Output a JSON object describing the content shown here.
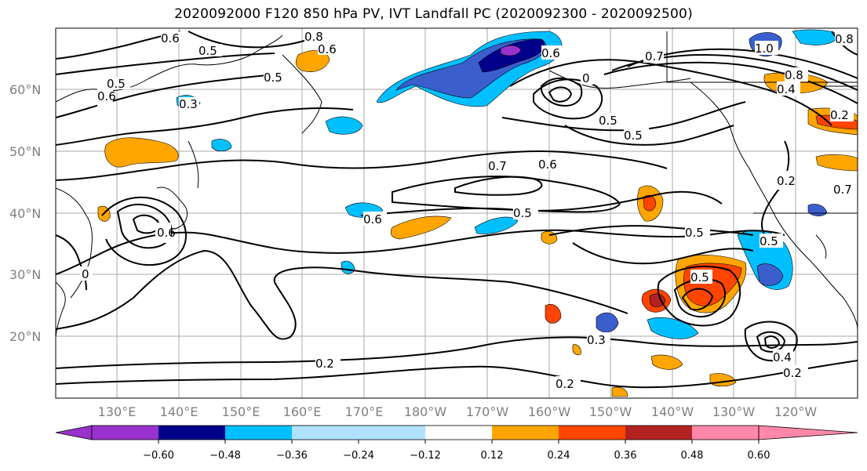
{
  "title": "2020092000 F120 850 hPa PV, IVT Landfall PC (2020092300 - 2020092500)",
  "map": {
    "lat_labels": [
      "60°N",
      "50°N",
      "40°N",
      "30°N",
      "20°N"
    ],
    "lon_labels": [
      "130°E",
      "140°E",
      "150°E",
      "160°E",
      "170°E",
      "180°W",
      "170°W",
      "160°W",
      "150°W",
      "140°W",
      "130°W",
      "120°W"
    ],
    "contour_labels": [
      "0.6",
      "0.5",
      "0.8",
      "0.6",
      "0.5",
      "0.6",
      "0.5",
      "0.3",
      "0.7",
      "0.6",
      "0.5",
      "0.7",
      "0.6",
      "0.6",
      "0.5",
      "0.5",
      "0.5",
      "0.5",
      "0.5",
      "0.3",
      "0.2",
      "0.2",
      "0.2",
      "0.4",
      "1.0",
      "0.8",
      "0.8",
      "0.4",
      "0.2",
      "0.2",
      "0.6",
      "0",
      "0.7",
      "0"
    ]
  },
  "colorbar": {
    "colors": [
      "#9932CC",
      "#00008B",
      "#3A5FCD",
      "#00BFFF",
      "#B0E2FF",
      "#FFFFFF",
      "#FFEC8B",
      "#FFA500",
      "#FF4500",
      "#B22222",
      "#FF88AA"
    ],
    "tick_labels": [
      "−0.60",
      "−0.48",
      "−0.36",
      "−0.24",
      "−0.12",
      "0.12",
      "0.24",
      "0.36",
      "0.48",
      "0.60"
    ]
  }
}
